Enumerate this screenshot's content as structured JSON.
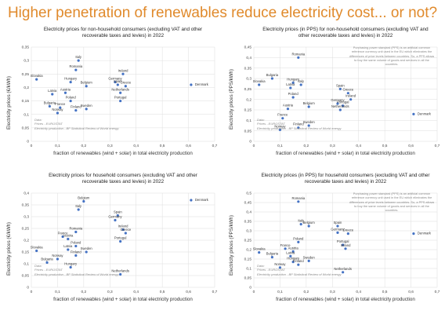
{
  "page": {
    "title": "Higher penetration of renewables reduce electricity cost... or not?"
  },
  "chart_data": [
    {
      "type": "scatter",
      "title": "Electricity prices for non-household consumers (excluding VAT and other recoverable taxes and levies) in 2022",
      "xlabel": "fraction of renewables (wind + solar) in total electricity production",
      "ylabel": "Electricity prices (€/kWh)",
      "xlim": [
        0,
        0.7
      ],
      "xticks": [
        "0",
        "0,1",
        "0,2",
        "0,3",
        "0,4",
        "0,5",
        "0,6",
        "0,7"
      ],
      "xtick_values": [
        0,
        0.1,
        0.2,
        0.3,
        0.4,
        0.5,
        0.6,
        0.7
      ],
      "ylim": [
        0,
        0.35
      ],
      "yticks": [
        "0",
        "0,05",
        "0,1",
        "0,15",
        "0,2",
        "0,25",
        "0,3",
        "0,35"
      ],
      "ytick_values": [
        0,
        0.05,
        0.1,
        0.15,
        0.2,
        0.25,
        0.3,
        0.35
      ],
      "grid": true,
      "color": "#4472c4",
      "source": [
        "Data:",
        "Prices - EUROSTAT",
        "Electricity production - BP Statistical Review of World energy"
      ],
      "note": "",
      "points": [
        {
          "label": "Italy",
          "x": 0.18,
          "y": 0.3
        },
        {
          "label": "Romania",
          "x": 0.17,
          "y": 0.265
        },
        {
          "label": "Ireland",
          "x": 0.35,
          "y": 0.25
        },
        {
          "label": "Germany",
          "x": 0.32,
          "y": 0.22
        },
        {
          "label": "Slovakia",
          "x": 0.02,
          "y": 0.23
        },
        {
          "label": "Hungary",
          "x": 0.15,
          "y": 0.22
        },
        {
          "label": "Belgium",
          "x": 0.21,
          "y": 0.205
        },
        {
          "label": "Spain",
          "x": 0.33,
          "y": 0.21
        },
        {
          "label": "Greece",
          "x": 0.36,
          "y": 0.205
        },
        {
          "label": "Denmark",
          "x": 0.61,
          "y": 0.21
        },
        {
          "label": "Latvia",
          "x": 0.08,
          "y": 0.175
        },
        {
          "label": "Austria",
          "x": 0.13,
          "y": 0.18
        },
        {
          "label": "Netherlands",
          "x": 0.34,
          "y": 0.18
        },
        {
          "label": "Portugal",
          "x": 0.34,
          "y": 0.15
        },
        {
          "label": "Poland",
          "x": 0.15,
          "y": 0.15
        },
        {
          "label": "Bulgaria",
          "x": 0.07,
          "y": 0.13
        },
        {
          "label": "France",
          "x": 0.11,
          "y": 0.125
        },
        {
          "label": "Sweden",
          "x": 0.21,
          "y": 0.12
        },
        {
          "label": "Finland",
          "x": 0.17,
          "y": 0.115
        },
        {
          "label": "Norway",
          "x": 0.1,
          "y": 0.105
        }
      ]
    },
    {
      "type": "scatter",
      "title": "Electricity prices (in PPS) for non-household consumers (excluding VAT and other recoverable taxes and levies) in 2022",
      "xlabel": "fraction of renewables (wind + solar) in total electricity production",
      "ylabel": "Electricity prices (PPS/kWh)",
      "xlim": [
        0,
        0.7
      ],
      "xticks": [
        "0",
        "0,1",
        "0,2",
        "0,3",
        "0,4",
        "0,5",
        "0,6",
        "0,7"
      ],
      "xtick_values": [
        0,
        0.1,
        0.2,
        0.3,
        0.4,
        0.5,
        0.6,
        0.7
      ],
      "ylim": [
        0,
        0.45
      ],
      "yticks": [
        "0",
        "0,05",
        "0,1",
        "0,15",
        "0,2",
        "0,25",
        "0,3",
        "0,35",
        "0,4",
        "0,45"
      ],
      "ytick_values": [
        0,
        0.05,
        0.1,
        0.15,
        0.2,
        0.25,
        0.3,
        0.35,
        0.4,
        0.45
      ],
      "grid": true,
      "color": "#4472c4",
      "source": [
        "Data:",
        "Prices - EUROSTAT",
        "Electricity production - BP Statistical Review of World energy"
      ],
      "note": "Purchasing power standard (PPS) is an artificial common reference currency unit used in the EU which eliminates the differences of price levels between countries. So, a PPS allows to buy the same volume of goods and services in all the countries.",
      "points": [
        {
          "label": "Romania",
          "x": 0.17,
          "y": 0.4
        },
        {
          "label": "Bulgaria",
          "x": 0.07,
          "y": 0.3
        },
        {
          "label": "Slovakia",
          "x": 0.02,
          "y": 0.27
        },
        {
          "label": "Hungary",
          "x": 0.15,
          "y": 0.28
        },
        {
          "label": "Italy",
          "x": 0.18,
          "y": 0.27
        },
        {
          "label": "Latvia",
          "x": 0.14,
          "y": 0.255
        },
        {
          "label": "Spain",
          "x": 0.33,
          "y": 0.25
        },
        {
          "label": "Greece",
          "x": 0.36,
          "y": 0.23
        },
        {
          "label": "Poland",
          "x": 0.15,
          "y": 0.21
        },
        {
          "label": "Ireland",
          "x": 0.37,
          "y": 0.2
        },
        {
          "label": "Germany",
          "x": 0.32,
          "y": 0.18
        },
        {
          "label": "Portugal",
          "x": 0.34,
          "y": 0.17
        },
        {
          "label": "Belgium",
          "x": 0.21,
          "y": 0.165
        },
        {
          "label": "Austria",
          "x": 0.13,
          "y": 0.155
        },
        {
          "label": "Netherlands",
          "x": 0.33,
          "y": 0.15
        },
        {
          "label": "Denmark",
          "x": 0.61,
          "y": 0.13
        },
        {
          "label": "France",
          "x": 0.11,
          "y": 0.11
        },
        {
          "label": "Sweden",
          "x": 0.21,
          "y": 0.075
        },
        {
          "label": "Finland",
          "x": 0.17,
          "y": 0.065
        },
        {
          "label": "Norway",
          "x": 0.1,
          "y": 0.055
        }
      ]
    },
    {
      "type": "scatter",
      "title": "Electricity prices for household consumers (excluding VAT and other recoverable taxes and levies) in 2022",
      "xlabel": "fraction of renewables (wind + solar) in total electricity production",
      "ylabel": "Electricity prices (€/kWh)",
      "xlim": [
        0,
        0.7
      ],
      "xticks": [
        "0",
        "0,1",
        "0,2",
        "0,3",
        "0,4",
        "0,5",
        "0,6",
        "0,7"
      ],
      "xtick_values": [
        0,
        0.1,
        0.2,
        0.3,
        0.4,
        0.5,
        0.6,
        0.7
      ],
      "ylim": [
        0,
        0.4
      ],
      "yticks": [
        "0",
        "0,05",
        "0,1",
        "0,15",
        "0,2",
        "0,25",
        "0,3",
        "0,35",
        "0,4"
      ],
      "ytick_values": [
        0,
        0.05,
        0.1,
        0.15,
        0.2,
        0.25,
        0.3,
        0.35,
        0.4
      ],
      "grid": true,
      "color": "#4472c4",
      "source": [
        "Data:",
        "Prices - EUROSTAT",
        "Electricity production - BP Statistical Review of World energy"
      ],
      "note": "",
      "points": [
        {
          "label": "Belgium",
          "x": 0.2,
          "y": 0.365
        },
        {
          "label": "Denmark",
          "x": 0.61,
          "y": 0.37
        },
        {
          "label": "Italy",
          "x": 0.18,
          "y": 0.33
        },
        {
          "label": "Spain",
          "x": 0.33,
          "y": 0.305
        },
        {
          "label": "Germany",
          "x": 0.32,
          "y": 0.285
        },
        {
          "label": "Ireland",
          "x": 0.35,
          "y": 0.245
        },
        {
          "label": "Romania",
          "x": 0.17,
          "y": 0.235
        },
        {
          "label": "Greece",
          "x": 0.36,
          "y": 0.23
        },
        {
          "label": "France",
          "x": 0.12,
          "y": 0.215
        },
        {
          "label": "Austria",
          "x": 0.14,
          "y": 0.205
        },
        {
          "label": "Portugal",
          "x": 0.34,
          "y": 0.195
        },
        {
          "label": "Poland",
          "x": 0.17,
          "y": 0.175
        },
        {
          "label": "Latvia",
          "x": 0.14,
          "y": 0.16
        },
        {
          "label": "Slovakia",
          "x": 0.02,
          "y": 0.155
        },
        {
          "label": "Sweden",
          "x": 0.21,
          "y": 0.15
        },
        {
          "label": "Finland",
          "x": 0.17,
          "y": 0.135
        },
        {
          "label": "Norway",
          "x": 0.1,
          "y": 0.12
        },
        {
          "label": "Bulgaria",
          "x": 0.06,
          "y": 0.105
        },
        {
          "label": "Hungary",
          "x": 0.15,
          "y": 0.085
        },
        {
          "label": "Netherlands",
          "x": 0.34,
          "y": 0.055
        }
      ]
    },
    {
      "type": "scatter",
      "title": "Electricity prices (in PPS) for household consumers (excluding VAT and other recoverable taxes and levies) in 2022",
      "xlabel": "fraction of renewables (wind + solar) in total electricity production",
      "ylabel": "Electricity prices (PPS/kWh)",
      "xlim": [
        0,
        0.7
      ],
      "xticks": [
        "0",
        "0,1",
        "0,2",
        "0,3",
        "0,4",
        "0,5",
        "0,6",
        "0,7"
      ],
      "xtick_values": [
        0,
        0.1,
        0.2,
        0.3,
        0.4,
        0.5,
        0.6,
        0.7
      ],
      "ylim": [
        0,
        0.5
      ],
      "yticks": [
        "0",
        "0,05",
        "0,1",
        "0,15",
        "0,2",
        "0,25",
        "0,3",
        "0,35",
        "0,4",
        "0,45",
        "0,5"
      ],
      "ytick_values": [
        0,
        0.05,
        0.1,
        0.15,
        0.2,
        0.25,
        0.3,
        0.35,
        0.4,
        0.45,
        0.5
      ],
      "grid": true,
      "color": "#4472c4",
      "source": [
        "Data:",
        "Prices - EUROSTAT",
        "Electricity production - BP Statistical Review of World energy"
      ],
      "note": "Purchasing power standard (PPS) is an artificial common reference currency unit used in the EU which eliminates the differences of price levels between countries. So, a PPS allows to buy the same volume of goods and services in all the countries.",
      "points": [
        {
          "label": "Romania",
          "x": 0.17,
          "y": 0.455
        },
        {
          "label": "Italy",
          "x": 0.18,
          "y": 0.335
        },
        {
          "label": "Belgium",
          "x": 0.21,
          "y": 0.325
        },
        {
          "label": "Spain",
          "x": 0.32,
          "y": 0.325
        },
        {
          "label": "Germany",
          "x": 0.32,
          "y": 0.29
        },
        {
          "label": "Denmark",
          "x": 0.61,
          "y": 0.285
        },
        {
          "label": "Greece",
          "x": 0.36,
          "y": 0.285
        },
        {
          "label": "Poland",
          "x": 0.17,
          "y": 0.24
        },
        {
          "label": "Portugal",
          "x": 0.34,
          "y": 0.225
        },
        {
          "label": "Ireland",
          "x": 0.35,
          "y": 0.205
        },
        {
          "label": "France",
          "x": 0.12,
          "y": 0.205
        },
        {
          "label": "Austria",
          "x": 0.15,
          "y": 0.19
        },
        {
          "label": "Slovakia",
          "x": 0.02,
          "y": 0.185
        },
        {
          "label": "Latvia",
          "x": 0.14,
          "y": 0.165
        },
        {
          "label": "Bulgaria",
          "x": 0.07,
          "y": 0.16
        },
        {
          "label": "Hungary",
          "x": 0.15,
          "y": 0.135
        },
        {
          "label": "Sweden",
          "x": 0.21,
          "y": 0.14
        },
        {
          "label": "Finland",
          "x": 0.17,
          "y": 0.12
        },
        {
          "label": "Norway",
          "x": 0.1,
          "y": 0.105
        },
        {
          "label": "Netherlands",
          "x": 0.34,
          "y": 0.08
        }
      ]
    }
  ]
}
